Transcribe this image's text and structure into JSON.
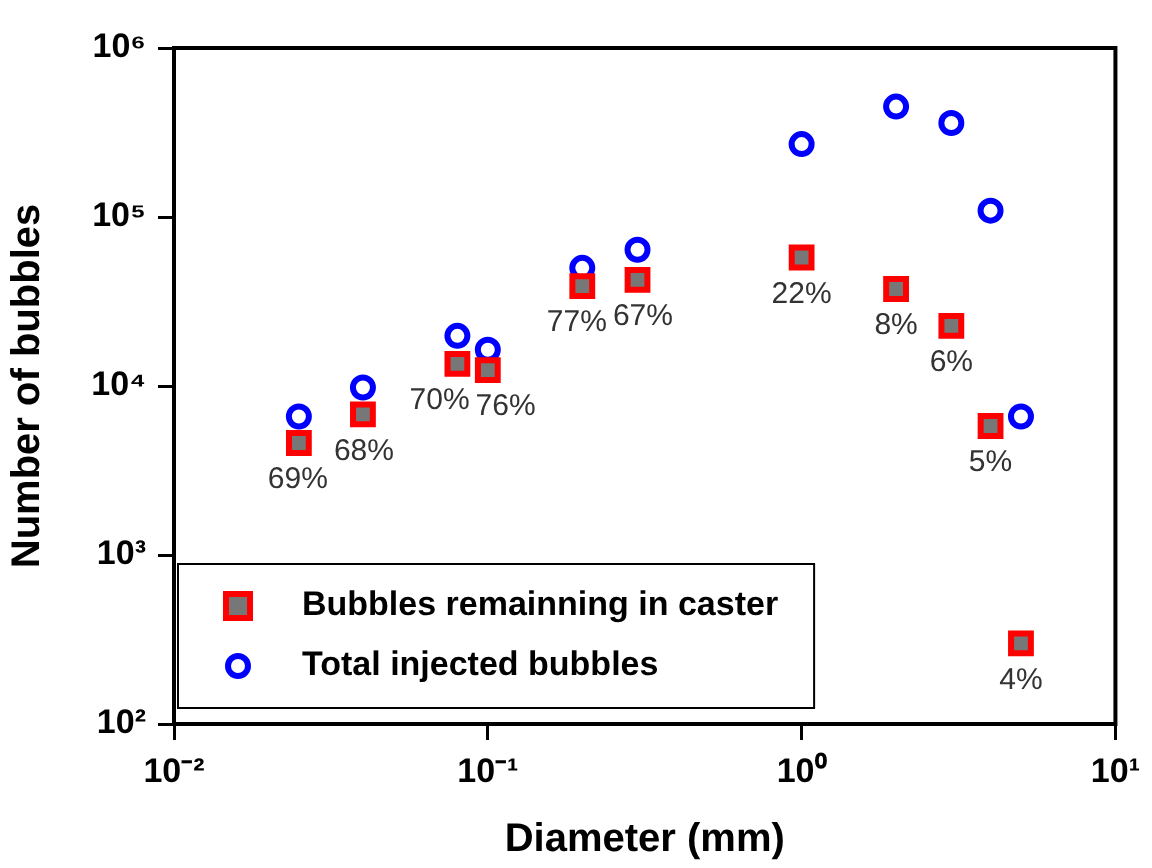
{
  "chart_data": {
    "type": "scatter",
    "xlabel": "Diameter (mm)",
    "ylabel": "Number of bubbles",
    "log": "xy",
    "grid": false,
    "legend": "bottom left",
    "xlim": [
      0.01,
      10
    ],
    "xticks": [
      {
        "value": 0.01,
        "label": "10⁻²"
      },
      {
        "value": 0.1,
        "label": "10⁻¹"
      },
      {
        "value": 1,
        "label": "10⁰"
      },
      {
        "value": 10,
        "label": "10¹"
      }
    ],
    "ylim": [
      100,
      1000000
    ],
    "yticks": [
      {
        "value": 100,
        "label": "10²"
      },
      {
        "value": 1000,
        "label": "10³"
      },
      {
        "value": 10000,
        "label": "10⁴"
      },
      {
        "value": 100000,
        "label": "10⁵"
      },
      {
        "value": 1000000,
        "label": "10⁶"
      }
    ],
    "series": [
      {
        "name": "Bubbles remainning in caster",
        "color": "#ff0000",
        "marker": "square",
        "x": [
          0.025,
          0.04,
          0.08,
          0.1,
          0.2,
          0.3,
          1,
          2,
          3,
          4,
          5
        ],
        "values": [
          4600,
          6800,
          13500,
          12400,
          39000,
          42500,
          57600,
          37500,
          22700,
          5800,
          300
        ]
      },
      {
        "name": "Total injected bubbles",
        "color": "#0000ff",
        "marker": "circle",
        "x": [
          0.025,
          0.04,
          0.08,
          0.1,
          0.2,
          0.3,
          1,
          2,
          3,
          4,
          5
        ],
        "values": [
          6600,
          9800,
          19800,
          16400,
          50000,
          64000,
          270000,
          450000,
          360000,
          109000,
          6600
        ]
      }
    ],
    "annotations": [
      {
        "text": "69%",
        "x": 0.025,
        "y": 4600
      },
      {
        "text": "68%",
        "x": 0.04,
        "y": 6800
      },
      {
        "text": "70%",
        "x": 0.08,
        "y": 13500
      },
      {
        "text": "76%",
        "x": 0.1,
        "y": 12400
      },
      {
        "text": "77%",
        "x": 0.2,
        "y": 39000
      },
      {
        "text": "67%",
        "x": 0.3,
        "y": 42500
      },
      {
        "text": "22%",
        "x": 1,
        "y": 57600
      },
      {
        "text": "8%",
        "x": 2,
        "y": 37500
      },
      {
        "text": "6%",
        "x": 3,
        "y": 22700
      },
      {
        "text": "5%",
        "x": 4,
        "y": 5800
      },
      {
        "text": "4%",
        "x": 5,
        "y": 300
      }
    ]
  }
}
